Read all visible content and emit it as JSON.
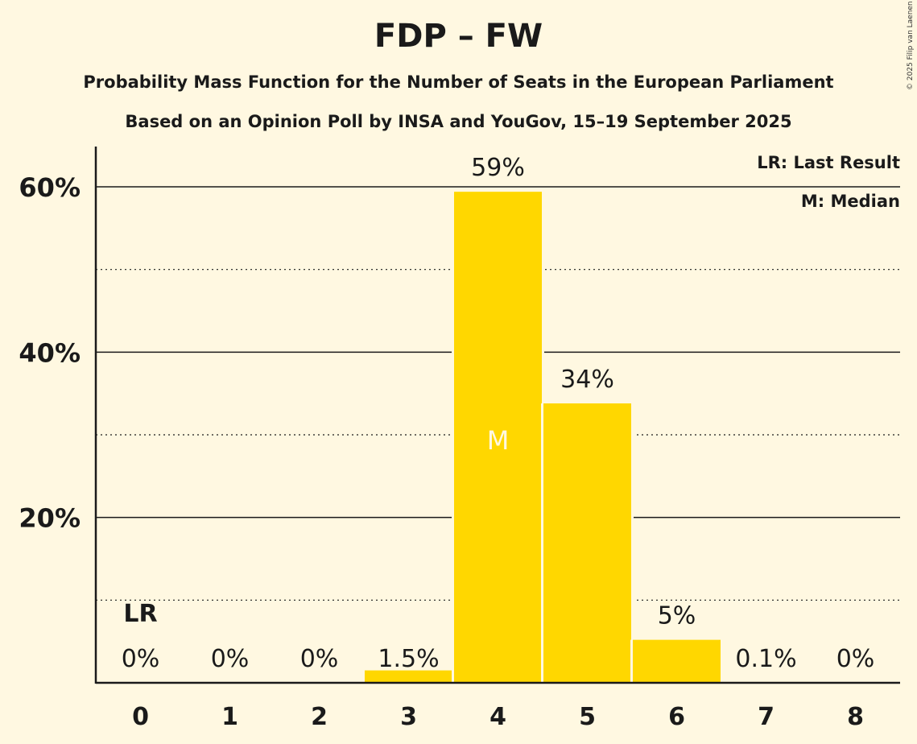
{
  "title": "FDP – FW",
  "subtitle": "Probability Mass Function for the Number of Seats in the European Parliament",
  "subtitle2": "Based on an Opinion Poll by INSA and YouGov, 15–19 September 2025",
  "copyright": "© 2025 Filip van Laenen",
  "colors": {
    "background": "#FFF8E1",
    "bar": "#FFD700",
    "text": "#1a1a1a",
    "median_label": "#FFF8E1"
  },
  "chart_data": {
    "type": "bar",
    "title": "FDP – FW",
    "xlabel": "",
    "ylabel": "",
    "categories": [
      "0",
      "1",
      "2",
      "3",
      "4",
      "5",
      "6",
      "7",
      "8"
    ],
    "values": [
      0,
      0,
      0,
      1.5,
      59.4,
      33.8,
      5.2,
      0.1,
      0
    ],
    "data_labels": [
      "0%",
      "0%",
      "0%",
      "1.5%",
      "59%",
      "34%",
      "5%",
      "0.1%",
      "0%"
    ],
    "ylim": [
      0,
      65
    ],
    "yticks_major": [
      20,
      40,
      60
    ],
    "ytick_labels": [
      "20%",
      "40%",
      "60%"
    ],
    "yticks_minor": [
      10,
      30,
      50
    ],
    "grid": true,
    "last_result_index": 0,
    "last_result_label": "LR",
    "median_index": 4,
    "median_label": "M",
    "legend": [
      "LR: Last Result",
      "M: Median"
    ],
    "legend_position": "top-right"
  }
}
